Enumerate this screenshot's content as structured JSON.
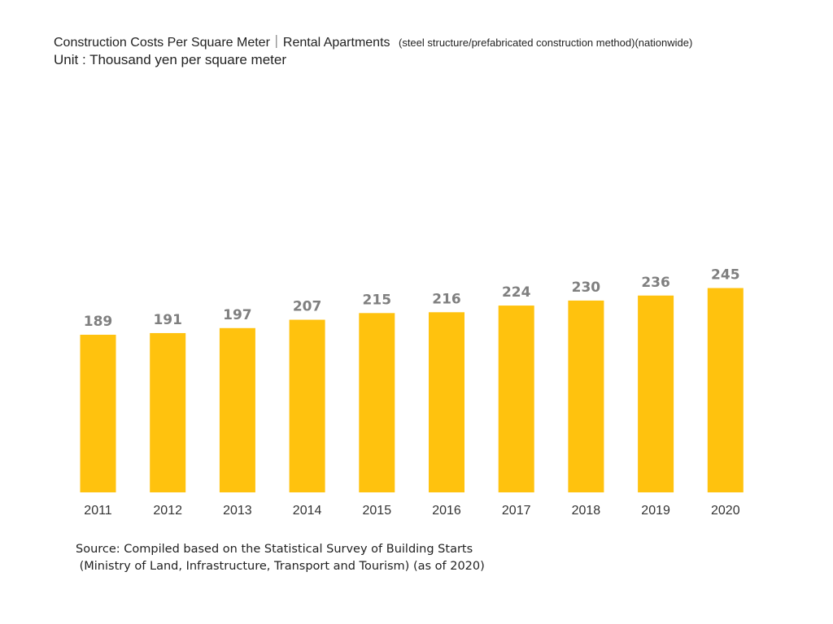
{
  "header": {
    "title": "Construction Costs Per Square Meter｜Rental Apartments",
    "subtitle": "(steel structure/prefabricated construction method)(nationwide)",
    "unit": "Unit : Thousand yen per square meter"
  },
  "source": {
    "line1": "Source: Compiled based on the Statistical Survey of Building Starts",
    "line2": " (Ministry of Land, Infrastructure, Transport and Tourism) (as of 2020)"
  },
  "chart_data": {
    "type": "bar",
    "title": "Construction Costs Per Square Meter｜Rental Apartments",
    "categories": [
      "2011",
      "2012",
      "2013",
      "2014",
      "2015",
      "2016",
      "2017",
      "2018",
      "2019",
      "2020"
    ],
    "values": [
      189,
      191,
      197,
      207,
      215,
      216,
      224,
      230,
      236,
      245
    ],
    "xlabel": "",
    "ylabel": "",
    "grid": false,
    "data_labels": true,
    "colors": {
      "bar": "#FFC20E",
      "value_label": "#7F7F7F",
      "axis_label": "#333333"
    }
  }
}
